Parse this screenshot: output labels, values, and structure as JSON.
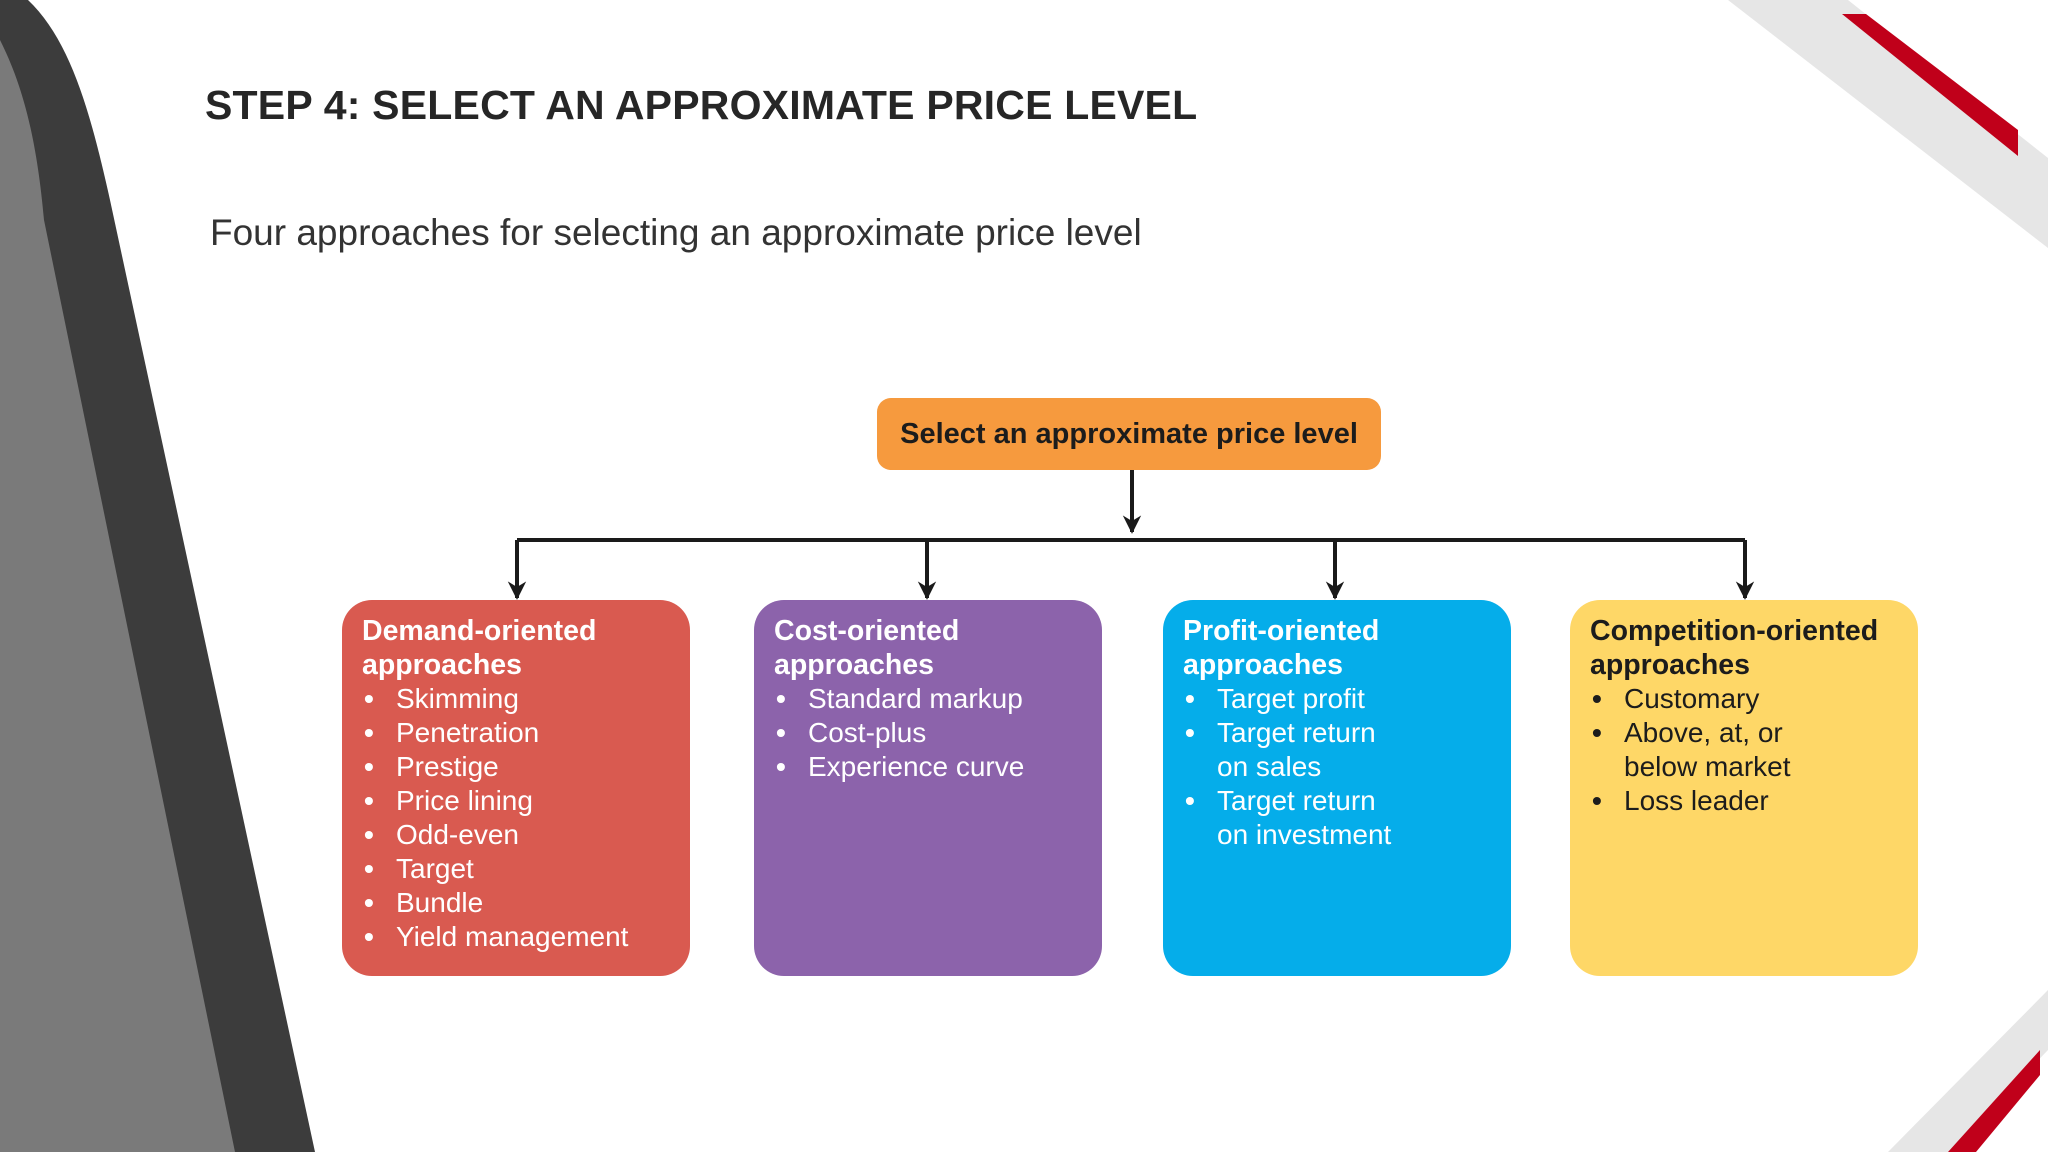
{
  "slide": {
    "title": "STEP 4: SELECT AN APPROXIMATE PRICE LEVEL",
    "subtitle": "Four approaches for selecting an approximate price level"
  },
  "diagram": {
    "root_label": "Select an approximate price level",
    "approaches": [
      {
        "heading": "Demand-oriented\napproaches",
        "color": "#d95a50",
        "items": [
          "Skimming",
          "Penetration",
          "Prestige",
          "Price lining",
          "Odd-even",
          "Target",
          "Bundle",
          "Yield management"
        ]
      },
      {
        "heading": "Cost-oriented\napproaches",
        "color": "#8c63ab",
        "items": [
          "Standard markup",
          "Cost-plus",
          "Experience curve"
        ]
      },
      {
        "heading": "Profit-oriented\napproaches",
        "color": "#05adea",
        "items": [
          "Target profit",
          "Target return\non sales",
          "Target return\non investment"
        ]
      },
      {
        "heading": "Competition-oriented\napproaches",
        "color": "#fed767",
        "items": [
          "Customary",
          "Above, at, or\nbelow market",
          "Loss leader"
        ]
      }
    ],
    "root_color": "#f69a3e",
    "connector_color": "#1a1a1a"
  },
  "theme": {
    "left_band_dark": "#3c3c3c",
    "left_band_gray": "#7a7a7a",
    "corner_red": "#c0001a",
    "corner_light": "#e6e6e6"
  }
}
